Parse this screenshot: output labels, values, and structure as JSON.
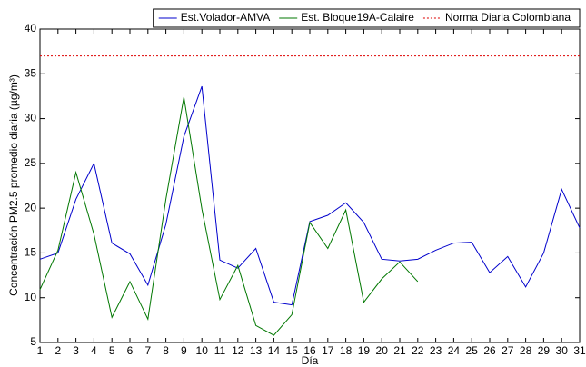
{
  "chart_data": {
    "type": "line",
    "xlabel": "Día",
    "ylabel": "Concentración PM2.5 promedio diaria (µg/m³)",
    "x": [
      1,
      2,
      3,
      4,
      5,
      6,
      7,
      8,
      9,
      10,
      11,
      12,
      13,
      14,
      15,
      16,
      17,
      18,
      19,
      20,
      21,
      22,
      23,
      24,
      25,
      26,
      27,
      28,
      29,
      30,
      31
    ],
    "series": [
      {
        "name": "Est.Volador-AMVA",
        "color": "#0000cc",
        "dashed": false,
        "values": [
          14.3,
          15.0,
          21.0,
          25.0,
          16.1,
          14.9,
          11.4,
          18.2,
          28.0,
          33.6,
          14.2,
          13.3,
          15.5,
          9.5,
          9.2,
          18.5,
          19.2,
          20.6,
          18.4,
          14.3,
          14.1,
          14.3,
          15.3,
          16.1,
          16.2,
          12.8,
          14.6,
          11.2,
          15.0,
          22.1,
          17.8
        ]
      },
      {
        "name": "Est. Bloque19A-Calaire",
        "color": "#007700",
        "dashed": false,
        "values": [
          10.9,
          15.3,
          24.0,
          17.1,
          7.8,
          11.8,
          7.6,
          21.0,
          32.4,
          19.9,
          9.8,
          13.6,
          6.9,
          5.8,
          8.1,
          18.4,
          15.5,
          19.8,
          9.5,
          12.1,
          14.0,
          11.8,
          null,
          null,
          null,
          null,
          null,
          null,
          null,
          null,
          null
        ]
      },
      {
        "name": "Norma Diaria Colombiana",
        "color": "#dd0000",
        "dashed": true,
        "values": [
          37,
          37,
          37,
          37,
          37,
          37,
          37,
          37,
          37,
          37,
          37,
          37,
          37,
          37,
          37,
          37,
          37,
          37,
          37,
          37,
          37,
          37,
          37,
          37,
          37,
          37,
          37,
          37,
          37,
          37,
          37
        ]
      }
    ],
    "xlim": [
      1,
      31
    ],
    "xticks": [
      1,
      2,
      3,
      4,
      5,
      6,
      7,
      8,
      9,
      10,
      11,
      12,
      13,
      14,
      15,
      16,
      17,
      18,
      19,
      20,
      21,
      22,
      23,
      24,
      25,
      26,
      27,
      28,
      29,
      30,
      31
    ],
    "ylim": [
      5,
      40
    ],
    "yticks": [
      5,
      10,
      15,
      20,
      25,
      30,
      35,
      40
    ],
    "grid": false,
    "legend": "top-right"
  }
}
